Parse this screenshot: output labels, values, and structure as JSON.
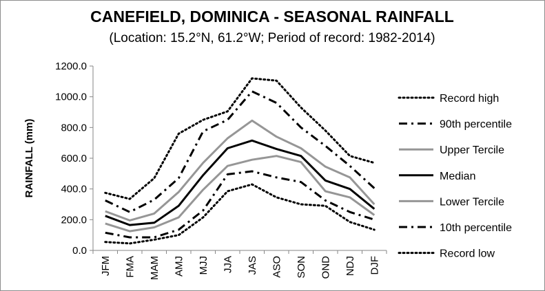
{
  "chart_data": {
    "type": "line",
    "title": "CANEFIELD, DOMINICA - SEASONAL RAINFALL",
    "subtitle": "(Location: 15.2°N, 61.2°W; Period of record: 1982-2014)",
    "ylabel": "RAINFALL (mm)",
    "xlabel": "",
    "ylim": [
      0,
      1200
    ],
    "yticks": [
      "0.0",
      "200.0",
      "400.0",
      "600.0",
      "800.0",
      "1000.0",
      "1200.0"
    ],
    "ytick_values": [
      0,
      200,
      400,
      600,
      800,
      1000,
      1200
    ],
    "categories": [
      "JFM",
      "FMA",
      "MAM",
      "AMJ",
      "MJJ",
      "JJA",
      "JAS",
      "ASO",
      "SON",
      "OND",
      "NDJ",
      "DJF"
    ],
    "grid": false,
    "legend_position": "right",
    "series": [
      {
        "name": "Record high",
        "color": "#000000",
        "style": "dotted",
        "width": 3,
        "values": [
          375,
          335,
          470,
          760,
          850,
          905,
          1120,
          1105,
          930,
          780,
          615,
          570
        ]
      },
      {
        "name": "90th percentile",
        "color": "#000000",
        "style": "dashdot",
        "width": 3,
        "values": [
          325,
          250,
          330,
          470,
          775,
          850,
          1035,
          960,
          800,
          680,
          550,
          405
        ]
      },
      {
        "name": "Upper Tercile",
        "color": "#969696",
        "style": "solid",
        "width": 3,
        "values": [
          255,
          195,
          240,
          380,
          570,
          730,
          845,
          740,
          665,
          545,
          475,
          300
        ]
      },
      {
        "name": "Median",
        "color": "#000000",
        "style": "solid",
        "width": 3,
        "values": [
          225,
          165,
          180,
          290,
          490,
          665,
          715,
          660,
          615,
          455,
          400,
          270
        ]
      },
      {
        "name": "Lower Tercile",
        "color": "#969696",
        "style": "solid",
        "width": 3,
        "values": [
          175,
          125,
          150,
          215,
          395,
          550,
          590,
          615,
          575,
          385,
          345,
          230
        ]
      },
      {
        "name": "10th percentile",
        "color": "#000000",
        "style": "dashdot",
        "width": 3,
        "values": [
          115,
          85,
          85,
          135,
          260,
          495,
          515,
          475,
          445,
          325,
          250,
          200
        ]
      },
      {
        "name": "Record low",
        "color": "#000000",
        "style": "dotted",
        "width": 3,
        "values": [
          55,
          45,
          70,
          100,
          215,
          385,
          430,
          345,
          300,
          290,
          185,
          135
        ]
      }
    ]
  }
}
